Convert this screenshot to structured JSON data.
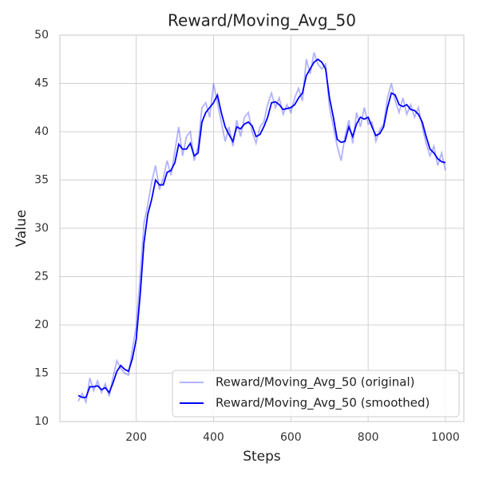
{
  "chart_data": {
    "type": "line",
    "title": "Reward/Moving_Avg_50",
    "xlabel": "Steps",
    "ylabel": "Value",
    "x": [
      50,
      60,
      70,
      80,
      90,
      100,
      110,
      120,
      130,
      140,
      150,
      160,
      170,
      180,
      190,
      200,
      210,
      220,
      230,
      240,
      250,
      260,
      270,
      280,
      290,
      300,
      310,
      320,
      330,
      340,
      350,
      360,
      370,
      380,
      390,
      400,
      410,
      420,
      430,
      440,
      450,
      460,
      470,
      480,
      490,
      500,
      510,
      520,
      530,
      540,
      550,
      560,
      570,
      580,
      590,
      600,
      610,
      620,
      630,
      640,
      650,
      660,
      670,
      680,
      690,
      700,
      710,
      720,
      730,
      740,
      750,
      760,
      770,
      780,
      790,
      800,
      810,
      820,
      830,
      840,
      850,
      860,
      870,
      880,
      890,
      900,
      910,
      920,
      930,
      940,
      950,
      960,
      970,
      980,
      990,
      1000
    ],
    "series": [
      {
        "name": "Reward/Moving_Avg_50 (original)",
        "color": "rgba(0,0,255,0.3)",
        "values": [
          12.1,
          12.9,
          12.0,
          14.5,
          13.2,
          14.2,
          13.0,
          13.9,
          12.6,
          14.6,
          16.3,
          15.5,
          15.0,
          14.8,
          17.5,
          19.8,
          25.0,
          30.5,
          32.5,
          34.8,
          36.5,
          34.0,
          35.2,
          37.0,
          35.5,
          38.0,
          40.5,
          37.5,
          39.5,
          40.0,
          37.0,
          38.5,
          42.5,
          43.0,
          41.5,
          45.0,
          43.0,
          41.0,
          39.0,
          40.5,
          38.5,
          41.2,
          39.5,
          41.5,
          42.0,
          40.0,
          38.8,
          40.5,
          41.0,
          42.8,
          44.0,
          42.5,
          43.5,
          41.8,
          42.8,
          42.0,
          43.5,
          44.5,
          43.2,
          47.5,
          46.0,
          48.2,
          47.0,
          46.5,
          47.0,
          42.5,
          40.5,
          38.5,
          37.0,
          39.5,
          41.2,
          38.8,
          42.0,
          40.5,
          42.5,
          40.8,
          41.0,
          39.0,
          40.2,
          40.8,
          43.5,
          45.0,
          43.2,
          42.0,
          43.5,
          41.8,
          42.8,
          41.5,
          42.5,
          40.5,
          38.8,
          37.5,
          38.5,
          36.5,
          37.8,
          36.0
        ]
      },
      {
        "name": "Reward/Moving_Avg_50 (smoothed)",
        "color": "#0000ff",
        "values": [
          12.7,
          12.5,
          12.5,
          13.6,
          13.6,
          13.7,
          13.3,
          13.5,
          13.0,
          14.0,
          15.2,
          15.8,
          15.4,
          15.2,
          16.5,
          18.5,
          23.0,
          28.5,
          31.5,
          33.0,
          35.0,
          34.5,
          34.5,
          35.8,
          36.0,
          36.8,
          38.7,
          38.2,
          38.2,
          38.8,
          37.5,
          37.8,
          41.0,
          42.0,
          42.5,
          43.0,
          43.8,
          42.0,
          40.5,
          39.7,
          39.0,
          40.5,
          40.3,
          40.8,
          41.0,
          40.6,
          39.5,
          39.7,
          40.5,
          41.5,
          43.0,
          43.1,
          42.8,
          42.3,
          42.4,
          42.5,
          42.8,
          43.5,
          44.0,
          45.8,
          46.5,
          47.2,
          47.5,
          47.2,
          46.5,
          43.5,
          41.5,
          39.2,
          38.9,
          39.0,
          40.5,
          39.5,
          40.8,
          41.5,
          41.3,
          41.5,
          40.5,
          39.6,
          39.8,
          40.5,
          42.5,
          44.0,
          43.8,
          42.8,
          42.6,
          42.8,
          42.3,
          42.2,
          41.8,
          41.0,
          39.5,
          38.2,
          37.8,
          37.2,
          36.9,
          36.8
        ]
      }
    ],
    "xlim": [
      2.5,
      1047.5
    ],
    "ylim": [
      10,
      50
    ],
    "xticks": [
      200,
      400,
      600,
      800,
      1000
    ],
    "yticks": [
      10,
      15,
      20,
      25,
      30,
      35,
      40,
      45,
      50
    ],
    "grid": true,
    "legend": "lower right"
  }
}
